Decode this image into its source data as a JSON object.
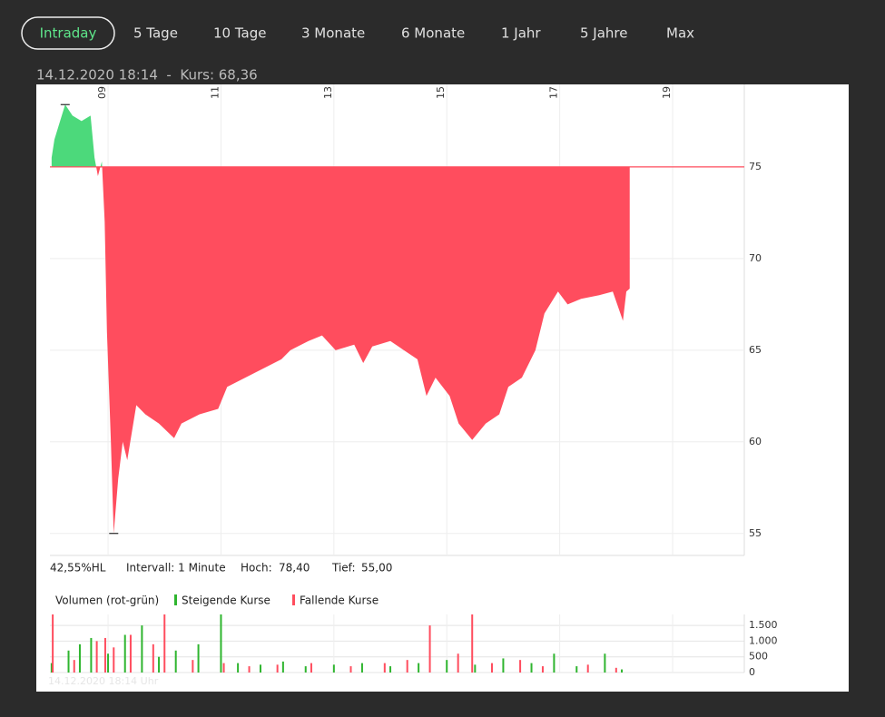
{
  "tabs": [
    "Intraday",
    "5 Tage",
    "10 Tage",
    "3 Monate",
    "6 Monate",
    "1 Jahr",
    "5 Jahre",
    "Max"
  ],
  "header": "14.12.2020 18:14  -  Kurs: 68,36",
  "info": {
    "range": "42,55%HL",
    "interval": "Intervall: 1 Minute",
    "high_label": "Hoch:",
    "high": "78,40",
    "low_label": "Tief:",
    "low": "55,00"
  },
  "watermark": "14.12.2020 18:14 Uhr",
  "chart_data": [
    {
      "type": "area",
      "x": [
        8.0,
        8.05,
        8.15,
        8.24,
        8.37,
        8.53,
        8.69,
        8.76,
        8.82,
        8.89,
        8.94,
        8.98,
        9.05,
        9.1,
        9.18,
        9.26,
        9.34,
        9.5,
        9.66,
        9.9,
        10.17,
        10.3,
        10.62,
        10.95,
        11.11,
        11.43,
        11.75,
        12.07,
        12.23,
        12.55,
        12.79,
        13.03,
        13.36,
        13.52,
        13.68,
        14.0,
        14.24,
        14.48,
        14.64,
        14.8,
        15.05,
        15.21,
        15.45,
        15.69,
        15.93,
        16.09,
        16.33,
        16.57,
        16.73,
        16.97,
        17.14,
        17.38,
        17.7,
        17.94,
        18.12,
        18.18,
        18.24
      ],
      "values": [
        75.5,
        76.5,
        77.5,
        78.4,
        77.8,
        77.5,
        77.8,
        75.5,
        74.5,
        75.3,
        72,
        66,
        60,
        55,
        58,
        60,
        59,
        62,
        61.5,
        61,
        60.2,
        61,
        61.5,
        61.8,
        63,
        63.5,
        64,
        64.5,
        65,
        65.5,
        65.8,
        65,
        65.3,
        64.3,
        65.2,
        65.5,
        65,
        64.5,
        62.5,
        63.5,
        62.5,
        61,
        60.1,
        61,
        61.5,
        63,
        63.5,
        65,
        67,
        68.2,
        67.5,
        67.8,
        68,
        68.2,
        66.6,
        68.2,
        68.36
      ],
      "reference": 75,
      "high": 78.4,
      "low": 55,
      "above_color": "#4cd97b",
      "below_color": "#ff4d5e",
      "xlim": [
        7.97,
        20.27
      ],
      "ylim": [
        53.8,
        79.5
      ],
      "xticks": [
        {
          "value": 9,
          "label": "09"
        },
        11,
        13,
        15,
        17,
        19
      ],
      "yticks": [
        55,
        60,
        65,
        70,
        75
      ],
      "grid": true
    },
    {
      "type": "bar",
      "title": "Volumen (rot-grün)",
      "series": [
        {
          "name": "Steigende Kurse",
          "color": "#2fb52f",
          "x": [
            8.0,
            8.3,
            8.5,
            8.7,
            9.0,
            9.3,
            9.6,
            9.9,
            10.2,
            10.6,
            11.0,
            11.3,
            11.7,
            12.1,
            12.5,
            13.0,
            13.5,
            14.0,
            14.5,
            15.0,
            15.5,
            16.0,
            16.5,
            16.9,
            17.3,
            17.8,
            18.1
          ],
          "values": [
            300,
            700,
            900,
            1100,
            600,
            1200,
            1500,
            500,
            700,
            900,
            1850,
            300,
            250,
            350,
            200,
            250,
            300,
            200,
            300,
            400,
            250,
            450,
            300,
            600,
            200,
            600,
            100
          ]
        },
        {
          "name": "Fallende Kurse",
          "color": "#ff4d5e",
          "x": [
            8.02,
            8.4,
            8.8,
            8.95,
            9.1,
            9.4,
            9.8,
            10.0,
            10.5,
            11.05,
            11.5,
            12.0,
            12.6,
            13.3,
            13.9,
            14.3,
            14.7,
            15.2,
            15.45,
            15.8,
            16.3,
            16.7,
            17.5,
            18.0
          ],
          "values": [
            1850,
            400,
            1000,
            1100,
            800,
            1200,
            900,
            1850,
            400,
            300,
            200,
            250,
            300,
            200,
            300,
            400,
            1500,
            600,
            1850,
            300,
            400,
            200,
            250,
            150
          ]
        }
      ],
      "xlim": [
        7.97,
        20.27
      ],
      "ylim": [
        0,
        1850
      ],
      "xticks": [
        {
          "value": 9,
          "label": "09"
        },
        11,
        13,
        15,
        17,
        19
      ],
      "yticks": [
        0,
        500,
        {
          "value": 1000,
          "label": "1.000"
        },
        {
          "value": 1500,
          "label": "1.500"
        }
      ],
      "grid": true
    }
  ]
}
